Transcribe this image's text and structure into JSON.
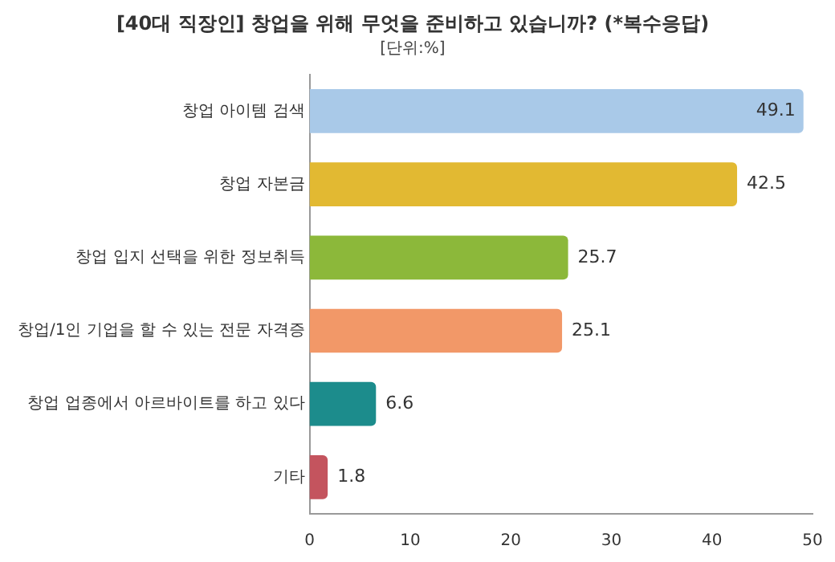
{
  "chart_data": {
    "type": "bar",
    "orientation": "horizontal",
    "title": "[40대 직장인] 창업을 위해 무엇을 준비하고 있습니까? (*복수응답)",
    "subtitle": "[단위:%]",
    "categories": [
      "창업 아이템 검색",
      "창업 자본금",
      "창업 입지 선택을 위한 정보취득",
      "창업/1인 기업을 할 수 있는 전문 자격증",
      "창업 업종에서 아르바이트를 하고 있다",
      "기타"
    ],
    "values": [
      49.1,
      42.5,
      25.7,
      25.1,
      6.6,
      1.8
    ],
    "colors": [
      "#a9c9e8",
      "#e2b932",
      "#8cb83a",
      "#f29868",
      "#1c8c8c",
      "#c4545e"
    ],
    "xlim": [
      0,
      50
    ],
    "xticks": [
      0,
      10,
      20,
      30,
      40,
      50
    ],
    "data_labels": true,
    "grid": false,
    "legend": false
  }
}
